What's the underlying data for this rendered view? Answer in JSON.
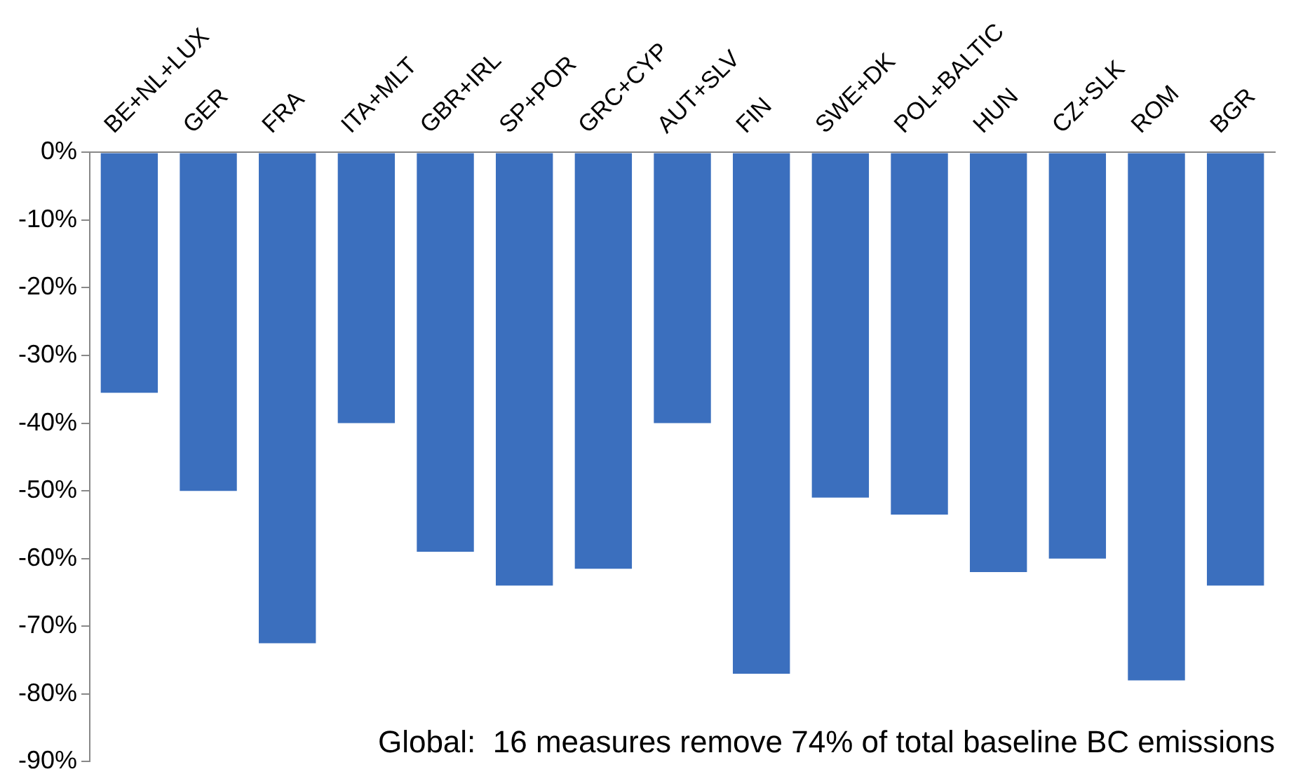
{
  "chart_data": {
    "type": "bar",
    "categories": [
      "BE+NL+LUX",
      "GER",
      "FRA",
      "ITA+MLT",
      "GBR+IRL",
      "SP+POR",
      "GRC+CYP",
      "AUT+SLV",
      "FIN",
      "SWE+DK",
      "POL+BALTIC",
      "HUN",
      "CZ+SLK",
      "ROM",
      "BGR"
    ],
    "values": [
      -35.5,
      -50,
      -72.5,
      -40,
      -59,
      -64,
      -61.5,
      -40,
      -77,
      -51,
      -53.5,
      -62,
      -60,
      -78,
      -64
    ],
    "color": "#3b6fbe",
    "ylim": [
      -90,
      0
    ],
    "yticks": [
      {
        "value": 0,
        "label": "0%"
      },
      {
        "value": -10,
        "label": "-10%"
      },
      {
        "value": -20,
        "label": "-20%"
      },
      {
        "value": -30,
        "label": "-30%"
      },
      {
        "value": -40,
        "label": "-40%"
      },
      {
        "value": -50,
        "label": "-50%"
      },
      {
        "value": -60,
        "label": "-60%"
      },
      {
        "value": -70,
        "label": "-70%"
      },
      {
        "value": -80,
        "label": "-80%"
      },
      {
        "value": -90,
        "label": "-90%"
      }
    ],
    "grid": false,
    "annotations": [
      "Global:  16 measures remove 74% of total baseline BC emissions"
    ]
  }
}
